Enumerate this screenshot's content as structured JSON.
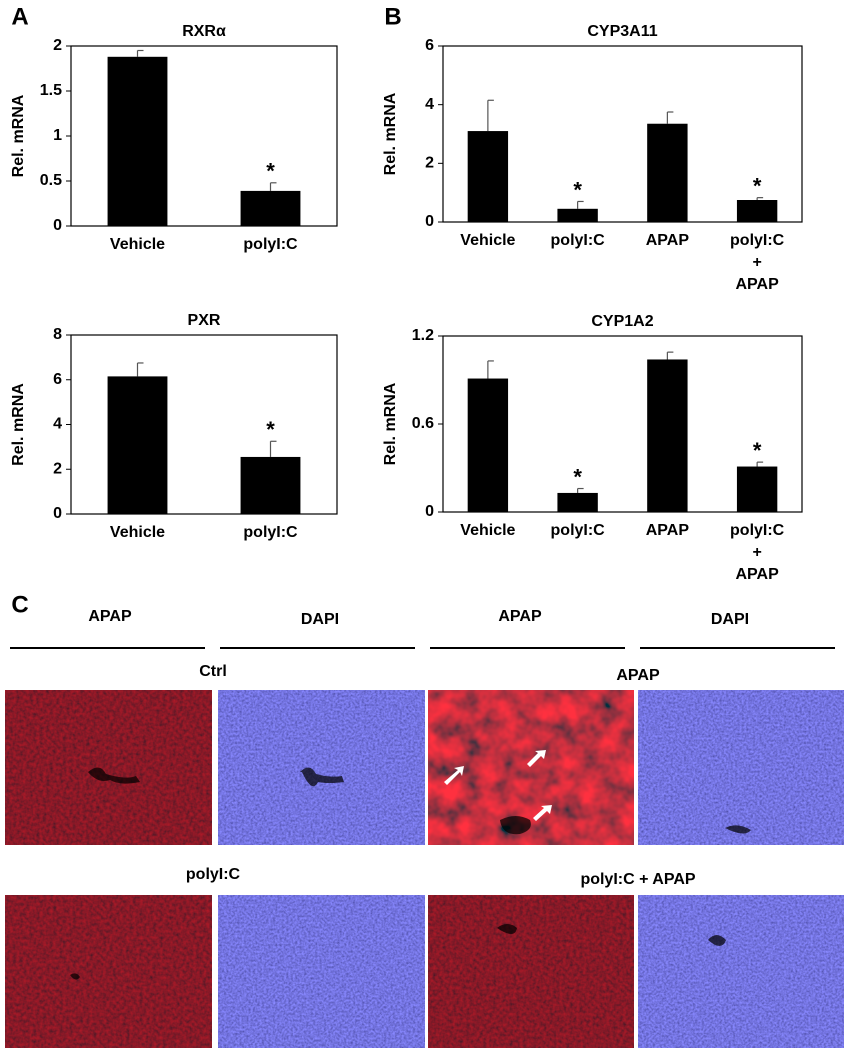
{
  "chart_data": [
    {
      "type": "bar",
      "title": "RXRα",
      "y_label": "Rel. mRNA",
      "categories": [
        "Vehicle",
        "polyI:C"
      ],
      "values": [
        1.88,
        0.39
      ],
      "errors": [
        0.07,
        0.09
      ],
      "markers": [
        null,
        "*"
      ],
      "color": "#000000",
      "ylim": [
        0,
        2
      ],
      "yticks": [
        0,
        0.5,
        1,
        1.5,
        2
      ]
    },
    {
      "type": "bar",
      "title": "CYP3A11",
      "y_label": "Rel. mRNA",
      "categories": [
        "Vehicle",
        "polyI:C",
        "APAP",
        "polyI:C + APAP"
      ],
      "values": [
        3.1,
        0.45,
        3.35,
        0.75
      ],
      "errors": [
        1.05,
        0.25,
        0.4,
        0.08
      ],
      "markers": [
        null,
        "*",
        null,
        "*"
      ],
      "color": "#000000",
      "ylim": [
        0,
        6
      ],
      "yticks": [
        0,
        2,
        4,
        6
      ]
    },
    {
      "type": "bar",
      "title": "PXR",
      "y_label": "Rel. mRNA",
      "categories": [
        "Vehicle",
        "polyI:C"
      ],
      "values": [
        6.15,
        2.55
      ],
      "errors": [
        0.6,
        0.7
      ],
      "markers": [
        null,
        "*"
      ],
      "color": "#000000",
      "ylim": [
        0,
        8
      ],
      "yticks": [
        0,
        2,
        4,
        6,
        8
      ]
    },
    {
      "type": "bar",
      "title": "CYP1A2",
      "y_label": "Rel. mRNA",
      "categories": [
        "Vehicle",
        "polyI:C",
        "APAP",
        "polyI:C + APAP"
      ],
      "values": [
        0.91,
        0.13,
        1.04,
        0.31
      ],
      "errors": [
        0.12,
        0.03,
        0.05,
        0.03
      ],
      "markers": [
        null,
        "*",
        null,
        "*"
      ],
      "color": "#000000",
      "ylim": [
        0,
        1.2
      ],
      "yticks": [
        0,
        0.6,
        1.2
      ]
    }
  ],
  "panel_labels": [
    "A",
    "B",
    "C"
  ],
  "panel_c": {
    "columns": [
      "APAP",
      "DAPI",
      "APAP",
      "DAPI"
    ],
    "rows": [
      "Ctrl",
      "APAP",
      "polyI:C",
      "polyI:C + APAP"
    ]
  }
}
